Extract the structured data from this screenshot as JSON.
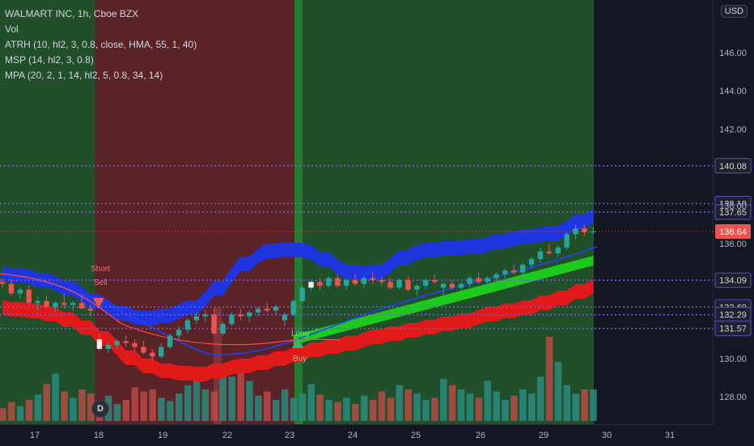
{
  "legend": {
    "title": "WALMART INC, 1h, Cboe BZX",
    "lines": [
      "Vol",
      "ATRH (10, hl2, 3, 0.8, close, HMA, 55, 1, 40)",
      "MSP (14, hl2, 3, 0.8)",
      "MPA (20, 2, 1, 14, hl2, 5, 0.8, 34, 14)"
    ]
  },
  "currency_button": "USD",
  "badge": "D",
  "colors": {
    "bg": "#131722",
    "up": "#26a69a",
    "down": "#ef5350",
    "blue_band": "#1e35e0",
    "red_band": "#e01919",
    "green_band": "#1ec91e",
    "dotted": "#7b5cd6",
    "green_zone": "#2e7d32",
    "red_zone": "#8b2c2c"
  },
  "chart_data": {
    "type": "candlestick",
    "symbol": "WALMART INC",
    "interval": "1h",
    "exchange": "Cboe BZX",
    "y_ticks": [
      "146.00",
      "144.00",
      "142.00",
      "138.00",
      "136.00",
      "130.00",
      "128.00"
    ],
    "ylim": [
      126.8,
      147.0
    ],
    "x_ticks": [
      "17",
      "18",
      "19",
      "22",
      "23",
      "24",
      "25",
      "26",
      "29",
      "30",
      "31"
    ],
    "price_levels": [
      {
        "value": 140.08,
        "label": "140.08"
      },
      {
        "value": 138.1,
        "label": "138.10"
      },
      {
        "value": 137.65,
        "label": "137.65"
      },
      {
        "value": 134.09,
        "label": "134.09"
      },
      {
        "value": 132.69,
        "label": "132.69"
      },
      {
        "value": 132.29,
        "label": "132.29"
      },
      {
        "value": 131.57,
        "label": "131.57"
      }
    ],
    "last_price": {
      "value": 136.64,
      "label": "136.64"
    },
    "signals": [
      {
        "text": "Short",
        "type": "sell"
      },
      {
        "text": "Sell",
        "type": "sell"
      },
      {
        "text": "Long",
        "type": "buy"
      },
      {
        "text": "Buy",
        "type": "buy"
      }
    ],
    "candles": [
      [
        134.0,
        134.2,
        133.7,
        133.9
      ],
      [
        133.9,
        134.1,
        133.3,
        133.4
      ],
      [
        133.4,
        133.7,
        133.1,
        133.6
      ],
      [
        133.6,
        133.8,
        132.8,
        132.9
      ],
      [
        132.9,
        133.2,
        132.5,
        133.0
      ],
      [
        133.0,
        133.3,
        132.6,
        132.7
      ],
      [
        132.7,
        133.0,
        132.4,
        132.9
      ],
      [
        132.9,
        133.4,
        132.6,
        132.8
      ],
      [
        132.8,
        133.0,
        132.5,
        132.9
      ],
      [
        132.9,
        133.3,
        132.7,
        132.6
      ],
      [
        132.6,
        132.8,
        132.2,
        132.5
      ],
      [
        131.0,
        131.3,
        130.4,
        130.5
      ],
      [
        130.5,
        130.8,
        130.3,
        130.7
      ],
      [
        130.7,
        131.0,
        130.5,
        130.9
      ],
      [
        130.9,
        131.2,
        130.6,
        130.8
      ],
      [
        130.8,
        131.0,
        130.4,
        130.6
      ],
      [
        130.6,
        130.9,
        130.2,
        130.3
      ],
      [
        130.3,
        130.5,
        129.9,
        130.1
      ],
      [
        130.1,
        130.8,
        130.0,
        130.6
      ],
      [
        130.6,
        131.3,
        130.5,
        131.2
      ],
      [
        131.2,
        131.7,
        131.0,
        131.5
      ],
      [
        131.5,
        132.1,
        131.3,
        132.0
      ],
      [
        132.0,
        132.4,
        131.8,
        132.2
      ],
      [
        132.2,
        132.5,
        131.9,
        132.3
      ],
      [
        132.3,
        132.6,
        131.2,
        131.3
      ],
      [
        131.3,
        131.9,
        131.2,
        131.8
      ],
      [
        131.8,
        132.4,
        131.7,
        132.3
      ],
      [
        132.3,
        132.6,
        132.0,
        132.2
      ],
      [
        132.2,
        132.5,
        131.9,
        132.4
      ],
      [
        132.4,
        132.7,
        132.2,
        132.6
      ],
      [
        132.6,
        132.9,
        132.4,
        132.5
      ],
      [
        132.5,
        132.8,
        132.3,
        132.7
      ],
      [
        132.0,
        132.4,
        131.7,
        132.3
      ],
      [
        132.3,
        133.1,
        132.2,
        133.0
      ],
      [
        133.0,
        133.8,
        132.9,
        133.7
      ],
      [
        133.7,
        134.1,
        133.5,
        134.0
      ],
      [
        134.0,
        134.2,
        133.6,
        133.8
      ],
      [
        133.8,
        134.3,
        133.7,
        134.2
      ],
      [
        134.2,
        134.4,
        133.7,
        133.8
      ],
      [
        133.8,
        134.2,
        133.6,
        134.1
      ],
      [
        134.1,
        134.4,
        133.8,
        133.9
      ],
      [
        133.9,
        134.3,
        133.7,
        134.2
      ],
      [
        134.2,
        134.5,
        133.9,
        134.1
      ],
      [
        134.1,
        134.3,
        133.8,
        134.0
      ],
      [
        134.0,
        134.2,
        133.6,
        133.7
      ],
      [
        133.7,
        134.2,
        133.6,
        134.1
      ],
      [
        134.1,
        134.3,
        133.5,
        133.6
      ],
      [
        133.6,
        133.9,
        133.3,
        133.8
      ],
      [
        133.8,
        134.2,
        133.6,
        134.1
      ],
      [
        134.1,
        134.4,
        133.9,
        134.0
      ],
      [
        133.7,
        134.0,
        133.3,
        133.9
      ],
      [
        133.9,
        134.1,
        133.6,
        133.7
      ],
      [
        133.7,
        134.0,
        133.5,
        133.9
      ],
      [
        133.9,
        134.3,
        133.7,
        134.2
      ],
      [
        134.2,
        134.5,
        133.9,
        134.0
      ],
      [
        134.0,
        134.3,
        133.7,
        134.2
      ],
      [
        134.2,
        134.5,
        134.0,
        134.4
      ],
      [
        134.4,
        134.7,
        134.2,
        134.6
      ],
      [
        134.6,
        134.9,
        134.4,
        134.5
      ],
      [
        134.5,
        135.0,
        134.3,
        134.9
      ],
      [
        134.9,
        135.3,
        134.7,
        135.2
      ],
      [
        135.2,
        135.8,
        135.0,
        135.6
      ],
      [
        135.6,
        136.0,
        135.4,
        135.5
      ],
      [
        135.5,
        135.9,
        135.3,
        135.8
      ],
      [
        135.8,
        136.6,
        135.7,
        136.5
      ],
      [
        136.5,
        137.0,
        136.2,
        136.8
      ],
      [
        136.8,
        137.0,
        136.4,
        136.6
      ],
      [
        136.6,
        136.9,
        136.5,
        136.64
      ]
    ],
    "volumes": [
      12,
      18,
      14,
      20,
      25,
      35,
      45,
      28,
      22,
      30,
      26,
      18,
      24,
      16,
      20,
      32,
      28,
      30,
      22,
      19,
      26,
      34,
      40,
      30,
      28,
      45,
      42,
      55,
      38,
      24,
      28,
      20,
      30,
      22,
      26,
      35,
      25,
      20,
      18,
      22,
      16,
      24,
      20,
      28,
      22,
      34,
      30,
      26,
      20,
      22,
      40,
      34,
      30,
      26,
      22,
      38,
      28,
      20,
      24,
      30,
      26,
      42,
      80,
      56,
      34,
      26,
      30,
      30
    ]
  }
}
